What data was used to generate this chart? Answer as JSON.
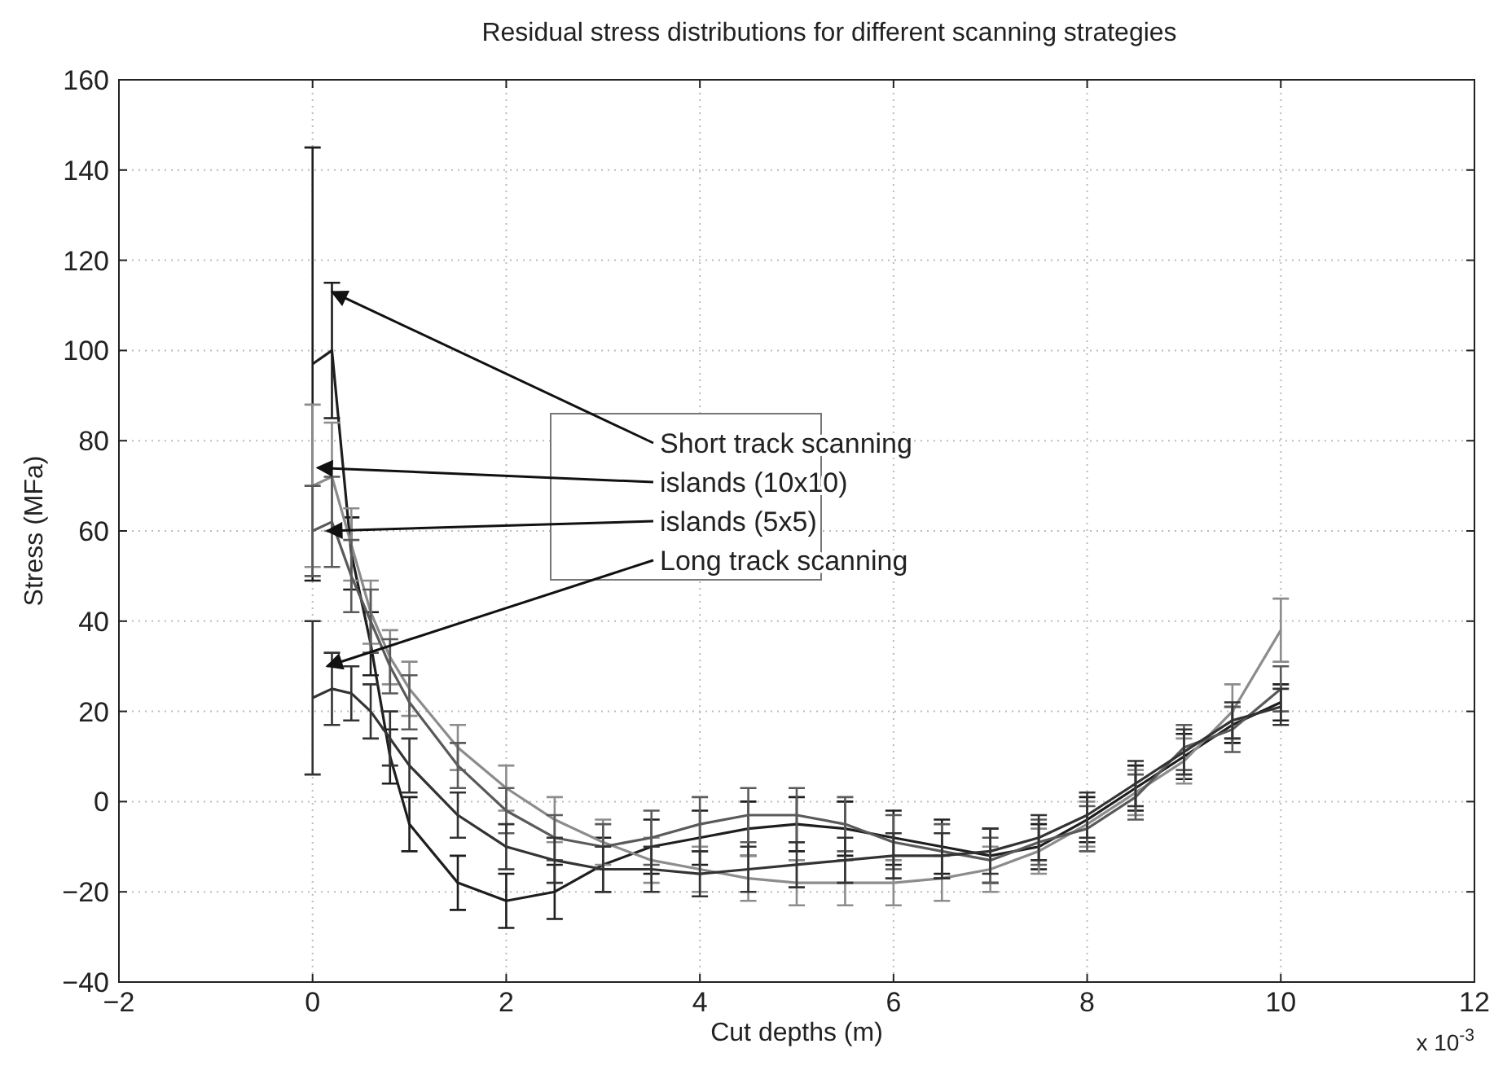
{
  "chart_data": {
    "type": "line",
    "title": "Residual stress distributions for different scanning strategies",
    "xlabel": "Cut depths (m)",
    "ylabel": "Stress (MFa)",
    "x": [
      0,
      0.2,
      0.4,
      0.6,
      0.8,
      1,
      1.5,
      2,
      2.5,
      3,
      3.5,
      4,
      4.5,
      5,
      5.5,
      6,
      6.5,
      7,
      7.5,
      8,
      8.5,
      9,
      9.5,
      10
    ],
    "series": [
      {
        "color": "#1e1e1e",
        "values": [
          97,
          100,
          55,
          35,
          10,
          -5,
          -18,
          -22,
          -20,
          -14,
          -10,
          -8,
          -6,
          -5,
          -6,
          -8,
          -10,
          -12,
          -10,
          -4,
          3,
          10,
          17,
          22
        ],
        "errors": [
          48,
          15,
          8,
          7,
          6,
          6,
          6,
          6,
          6,
          6,
          6,
          6,
          6,
          6,
          6,
          6,
          6,
          6,
          5,
          5,
          5,
          5,
          4,
          4
        ]
      },
      {
        "color": "#8c8c8c",
        "values": [
          70,
          72,
          57,
          42,
          32,
          25,
          12,
          3,
          -4,
          -9,
          -13,
          -15,
          -17,
          -18,
          -18,
          -18,
          -17,
          -15,
          -11,
          -5,
          2,
          9,
          20,
          38
        ],
        "errors": [
          18,
          12,
          8,
          7,
          6,
          6,
          5,
          5,
          5,
          5,
          5,
          5,
          5,
          5,
          5,
          5,
          5,
          5,
          5,
          5,
          5,
          5,
          6,
          7
        ]
      },
      {
        "color": "#5a5a5a",
        "values": [
          60,
          62,
          50,
          40,
          30,
          22,
          8,
          -2,
          -8,
          -10,
          -8,
          -5,
          -3,
          -3,
          -5,
          -9,
          -11,
          -13,
          -9,
          -6,
          1,
          12,
          16,
          25
        ],
        "errors": [
          10,
          10,
          8,
          7,
          6,
          6,
          5,
          5,
          5,
          5,
          6,
          6,
          6,
          6,
          6,
          6,
          6,
          5,
          5,
          5,
          5,
          5,
          5,
          5
        ]
      },
      {
        "color": "#333333",
        "values": [
          23,
          25,
          24,
          20,
          14,
          8,
          -3,
          -10,
          -13,
          -15,
          -15,
          -16,
          -15,
          -14,
          -13,
          -12,
          -12,
          -11,
          -8,
          -3,
          4,
          11,
          18,
          21
        ],
        "errors": [
          17,
          8,
          6,
          6,
          6,
          6,
          5,
          5,
          5,
          5,
          5,
          5,
          5,
          5,
          5,
          5,
          5,
          5,
          5,
          5,
          5,
          5,
          4,
          4
        ]
      }
    ],
    "xlim": [
      -2,
      12
    ],
    "xticks": [
      -2,
      0,
      2,
      4,
      6,
      8,
      10,
      12
    ],
    "ylim": [
      -40,
      160
    ],
    "yticks": [
      -40,
      -20,
      0,
      20,
      40,
      60,
      80,
      100,
      120,
      140,
      160
    ],
    "grid": true,
    "line_style": "solid",
    "marker": "none",
    "annotations": [
      {
        "text": "Short track scanning",
        "x": 0.2,
        "y": 113
      },
      {
        "text": "islands (10x10)",
        "x": 0.05,
        "y": 74
      },
      {
        "text": "islands (5x5)",
        "x": 0.15,
        "y": 60
      },
      {
        "text": "Long track scanning",
        "x": 0.15,
        "y": 30
      },
      "x 10$^{-3}$"
    ]
  }
}
